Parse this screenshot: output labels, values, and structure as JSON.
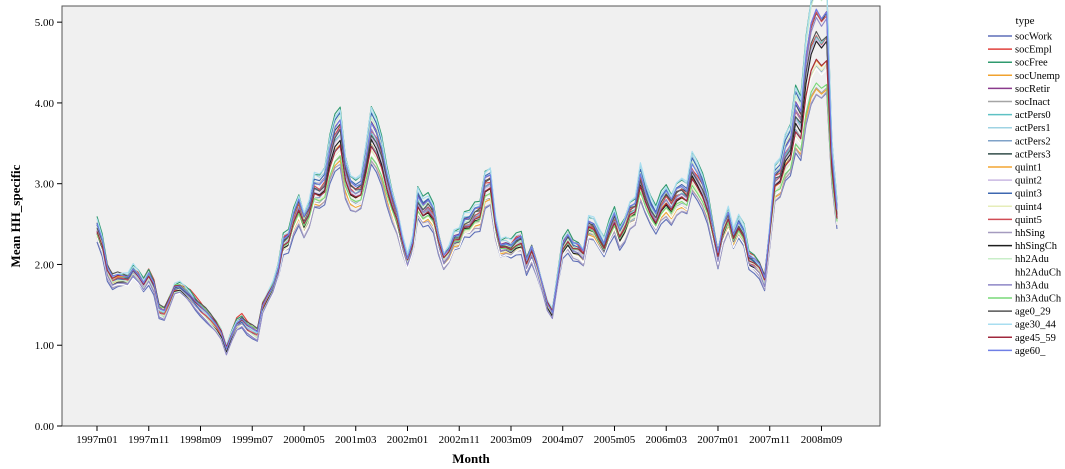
{
  "chart_data": {
    "type": "line",
    "title": "",
    "xlabel": "Month",
    "ylabel": "Mean HH_specific",
    "ylim": [
      0,
      5.2
    ],
    "yticks": [
      "0.00",
      "1.00",
      "2.00",
      "3.00",
      "4.00",
      "5.00"
    ],
    "x_tick_labels": [
      "1997m01",
      "1997m11",
      "1998m09",
      "1999m07",
      "2000m05",
      "2001m03",
      "2002m01",
      "2002m11",
      "2003m09",
      "2004m07",
      "2005m05",
      "2006m03",
      "2007m01",
      "2007m11",
      "2008m09"
    ],
    "x_start": "1997m01",
    "x_end": "2008m10",
    "legend_title": "type",
    "legend_position": "right",
    "base_values": [
      2.43,
      2.25,
      1.92,
      1.8,
      1.82,
      1.81,
      1.8,
      1.9,
      1.83,
      1.74,
      1.85,
      1.73,
      1.42,
      1.38,
      1.52,
      1.68,
      1.7,
      1.65,
      1.6,
      1.52,
      1.45,
      1.38,
      1.3,
      1.22,
      1.12,
      0.93,
      1.1,
      1.25,
      1.3,
      1.22,
      1.17,
      1.12,
      1.45,
      1.58,
      1.7,
      1.9,
      2.25,
      2.3,
      2.55,
      2.7,
      2.5,
      2.62,
      2.9,
      2.88,
      2.95,
      3.3,
      3.52,
      3.6,
      3.1,
      2.9,
      2.85,
      2.88,
      3.2,
      3.58,
      3.48,
      3.3,
      3.0,
      2.75,
      2.55,
      2.25,
      2.02,
      2.22,
      2.75,
      2.65,
      2.7,
      2.6,
      2.28,
      2.05,
      2.12,
      2.28,
      2.3,
      2.48,
      2.5,
      2.6,
      2.62,
      2.95,
      2.98,
      2.45,
      2.18,
      2.2,
      2.18,
      2.25,
      2.28,
      2.0,
      2.15,
      1.95,
      1.72,
      1.48,
      1.38,
      1.8,
      2.2,
      2.3,
      2.2,
      2.18,
      2.1,
      2.45,
      2.42,
      2.3,
      2.2,
      2.4,
      2.55,
      2.35,
      2.45,
      2.62,
      2.65,
      3.0,
      2.8,
      2.65,
      2.55,
      2.72,
      2.8,
      2.7,
      2.82,
      2.85,
      2.8,
      3.12,
      3.02,
      2.9,
      2.72,
      2.4,
      2.08,
      2.4,
      2.55,
      2.3,
      2.45,
      2.35,
      2.05,
      2.02,
      1.95,
      1.78,
      2.35,
      3.0,
      3.05,
      3.3,
      3.4,
      3.8,
      3.7,
      4.3,
      4.65,
      4.8,
      4.7,
      4.78,
      3.25,
      2.6
    ],
    "series": [
      {
        "name": "socWork",
        "color": "#5e6fb8"
      },
      {
        "name": "socEmpl",
        "color": "#e0413c"
      },
      {
        "name": "socFree",
        "color": "#2f9a6e"
      },
      {
        "name": "socUnemp",
        "color": "#f0a22e"
      },
      {
        "name": "socRetir",
        "color": "#8a3a8c"
      },
      {
        "name": "socInact",
        "color": "#a5a5a5"
      },
      {
        "name": "actPers0",
        "color": "#5ec1c4"
      },
      {
        "name": "actPers1",
        "color": "#9fd3e3"
      },
      {
        "name": "actPers2",
        "color": "#7fa2c8"
      },
      {
        "name": "actPers3",
        "color": "#334d4a"
      },
      {
        "name": "quint1",
        "color": "#f3a632"
      },
      {
        "name": "quint2",
        "color": "#c9b8e2"
      },
      {
        "name": "quint3",
        "color": "#3d67b0"
      },
      {
        "name": "quint4",
        "color": "#e6edb9"
      },
      {
        "name": "quint5",
        "color": "#d04c55"
      },
      {
        "name": "hhSing",
        "color": "#a59bbf"
      },
      {
        "name": "hhSingCh",
        "color": "#1e1e1e"
      },
      {
        "name": "hh2Adu",
        "color": "#c9eec8"
      },
      {
        "name": "hh2AduCh",
        "color": "#ffffff"
      },
      {
        "name": "hh3Adu",
        "color": "#8e86c6"
      },
      {
        "name": "hh3AduCh",
        "color": "#78d878"
      },
      {
        "name": "age0_29",
        "color": "#555555"
      },
      {
        "name": "age30_44",
        "color": "#a8def0"
      },
      {
        "name": "age45_59",
        "color": "#a0283c"
      },
      {
        "name": "age60_",
        "color": "#6f7fe6"
      }
    ]
  }
}
